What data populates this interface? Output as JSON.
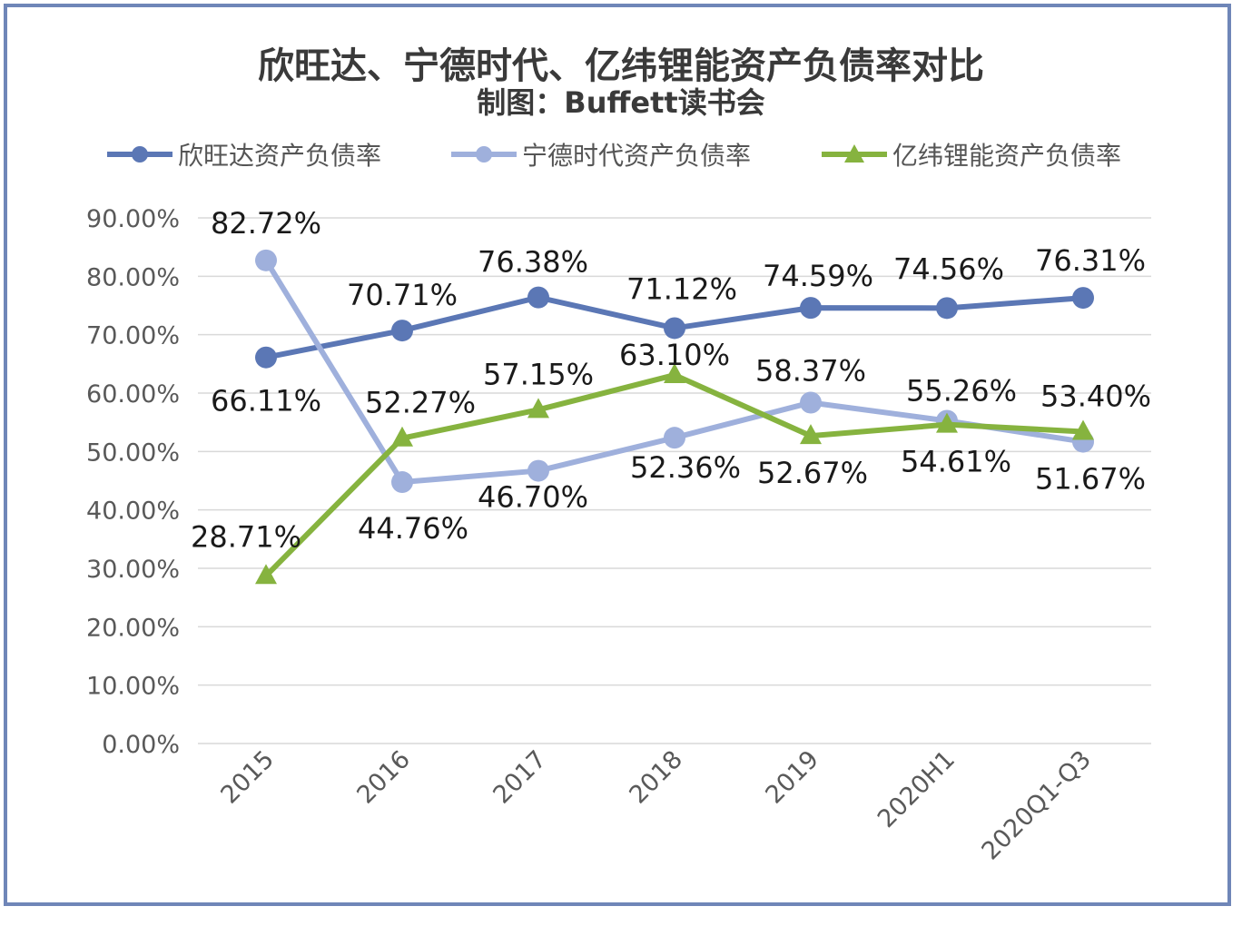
{
  "title": "欣旺达、宁德时代、亿纬锂能资产负债率对比",
  "subtitle": "制图：Buffett读书会",
  "chart_data": {
    "type": "line",
    "categories": [
      "2015",
      "2016",
      "2017",
      "2018",
      "2019",
      "2020H1",
      "2020Q1-Q3"
    ],
    "ylim": [
      0,
      90
    ],
    "yticks": [
      "0.00%",
      "10.00%",
      "20.00%",
      "30.00%",
      "40.00%",
      "50.00%",
      "60.00%",
      "70.00%",
      "80.00%",
      "90.00%"
    ],
    "grid": true,
    "legend_position": "top",
    "series": [
      {
        "name": "欣旺达资产负债率",
        "values": [
          66.11,
          70.71,
          76.38,
          71.12,
          74.59,
          74.56,
          76.31
        ],
        "labels": [
          "66.11%",
          "70.71%",
          "76.38%",
          "71.12%",
          "74.59%",
          "74.56%",
          "76.31%"
        ],
        "color": "#5b77b5",
        "marker": "circle"
      },
      {
        "name": "宁德时代资产负债率",
        "values": [
          82.72,
          44.76,
          46.7,
          52.36,
          58.37,
          55.26,
          51.67
        ],
        "labels": [
          "82.72%",
          "44.76%",
          "46.70%",
          "52.36%",
          "58.37%",
          "55.26%",
          "51.67%"
        ],
        "color": "#9fb0dc",
        "marker": "circle"
      },
      {
        "name": "亿纬锂能资产负债率",
        "values": [
          28.71,
          52.27,
          57.15,
          63.1,
          52.67,
          54.61,
          53.4
        ],
        "labels": [
          "28.71%",
          "52.27%",
          "57.15%",
          "63.10%",
          "52.67%",
          "54.61%",
          "53.40%"
        ],
        "color": "#86b33f",
        "marker": "triangle"
      }
    ]
  }
}
